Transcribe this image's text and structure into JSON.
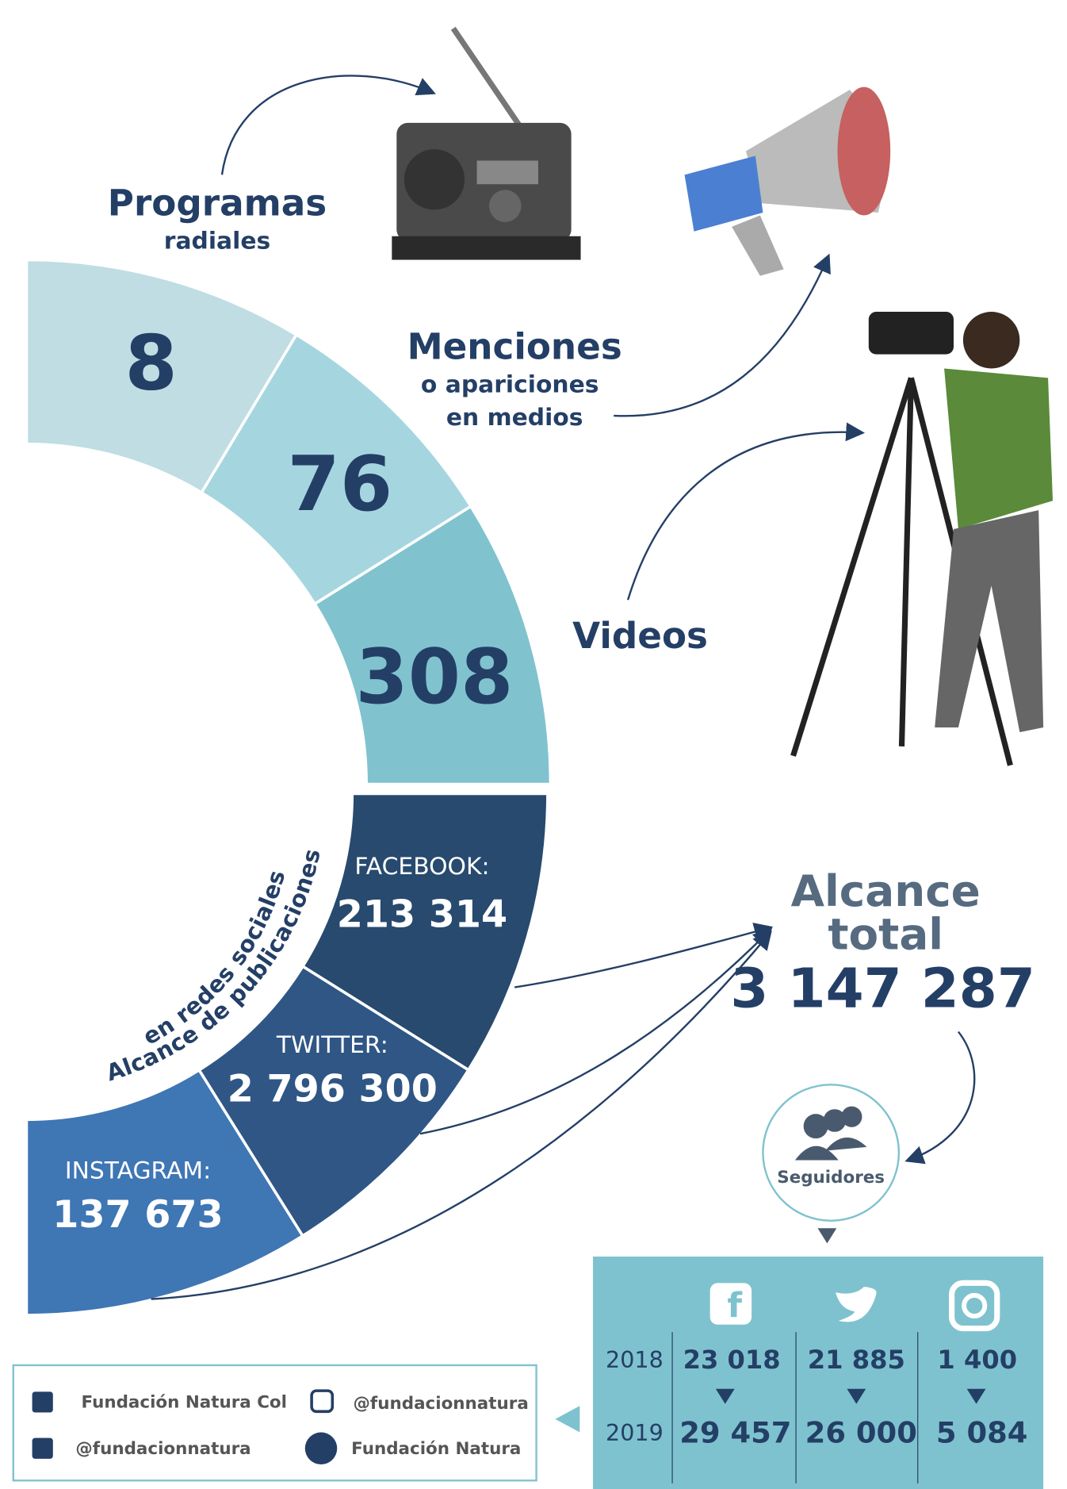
{
  "media": {
    "programs": {
      "label": "Programas",
      "sublabel": "radiales",
      "value": "8"
    },
    "mentions": {
      "label": "Menciones",
      "sublabel_1": "o apariciones",
      "sublabel_2": "en medios",
      "value": "76"
    },
    "videos": {
      "label": "Videos",
      "value": "308"
    }
  },
  "social_reach": {
    "title_1": "Alcance de publicaciones",
    "title_2": "en redes sociales",
    "facebook": {
      "label": "FACEBOOK:",
      "value": "213 314"
    },
    "twitter": {
      "label": "TWITTER:",
      "value": "2 796 300"
    },
    "instagram": {
      "label": "INSTAGRAM:",
      "value": "137 673"
    }
  },
  "total_reach": {
    "label_1": "Alcance",
    "label_2": "total",
    "value": "3 147 287"
  },
  "followers": {
    "label": "Seguidores",
    "years": [
      "2018",
      "2019"
    ],
    "facebook": [
      "23 018",
      "29 457"
    ],
    "twitter": [
      "21 885",
      "26 000"
    ],
    "instagram": [
      "1 400",
      "5 084"
    ]
  },
  "footer": {
    "facebook": "Fundación Natura Col",
    "instagram": "@fundacionnatura",
    "twitter": "@fundacionnatura",
    "youtube": "Fundación Natura"
  }
}
